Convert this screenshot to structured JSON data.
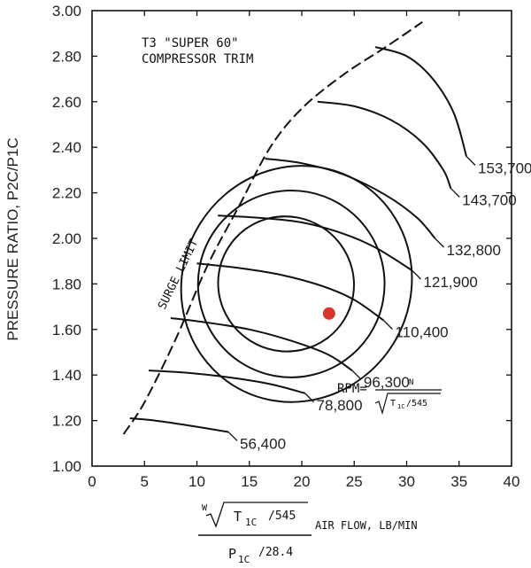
{
  "chart_data": {
    "type": "line",
    "title": "T3 \"SUPER 60\"",
    "subtitle": "COMPRESSOR TRIM",
    "xlabel": {
      "formula_w": "W",
      "formula_t": "T",
      "formula_t_sub": "1C",
      "formula_t_div": "/545",
      "suffix": "AIR FLOW, LB/MIN",
      "formula_p": "P",
      "formula_p_sub": "1C",
      "formula_p_div": "/28.4"
    },
    "ylabel": "PRESSURE RATIO, P2C/P1C",
    "xlim": [
      0,
      40
    ],
    "ylim": [
      1.0,
      3.0
    ],
    "x_ticks": [
      "0",
      "5",
      "10",
      "15",
      "20",
      "25",
      "30",
      "35",
      "40"
    ],
    "y_ticks": [
      "1.00",
      "1.20",
      "1.40",
      "1.60",
      "1.80",
      "2.00",
      "2.20",
      "2.40",
      "2.60",
      "2.80",
      "3.00"
    ],
    "surge_limit": {
      "label": "SURGE LIMIT",
      "points": [
        [
          3,
          1.14
        ],
        [
          5,
          1.28
        ],
        [
          8,
          1.56
        ],
        [
          11,
          1.88
        ],
        [
          14,
          2.14
        ],
        [
          17,
          2.4
        ],
        [
          20,
          2.57
        ],
        [
          24,
          2.72
        ],
        [
          28,
          2.84
        ],
        [
          31.5,
          2.95
        ]
      ]
    },
    "speed_lines": [
      {
        "name": "56,400",
        "points": [
          [
            3.6,
            1.21
          ],
          [
            6,
            1.2
          ],
          [
            9,
            1.18
          ],
          [
            13,
            1.15
          ]
        ]
      },
      {
        "name": "78,800",
        "points": [
          [
            5.4,
            1.42
          ],
          [
            9,
            1.41
          ],
          [
            13,
            1.39
          ],
          [
            17,
            1.36
          ],
          [
            20.3,
            1.32
          ]
        ]
      },
      {
        "name": "96,300",
        "points": [
          [
            7.5,
            1.65
          ],
          [
            11,
            1.63
          ],
          [
            15,
            1.6
          ],
          [
            19,
            1.55
          ],
          [
            22.5,
            1.49
          ],
          [
            24.8,
            1.42
          ]
        ]
      },
      {
        "name": "110,400",
        "points": [
          [
            10,
            1.89
          ],
          [
            14,
            1.87
          ],
          [
            18,
            1.84
          ],
          [
            22,
            1.79
          ],
          [
            25,
            1.73
          ],
          [
            27.8,
            1.64
          ]
        ]
      },
      {
        "name": "121,900",
        "points": [
          [
            12,
            2.1
          ],
          [
            16,
            2.09
          ],
          [
            20,
            2.07
          ],
          [
            24,
            2.02
          ],
          [
            27,
            1.96
          ],
          [
            30.5,
            1.86
          ]
        ]
      },
      {
        "name": "132,800",
        "points": [
          [
            16.5,
            2.35
          ],
          [
            20,
            2.33
          ],
          [
            24,
            2.28
          ],
          [
            28,
            2.19
          ],
          [
            31,
            2.09
          ],
          [
            32.7,
            2.0
          ]
        ]
      },
      {
        "name": "143,700",
        "points": [
          [
            21.5,
            2.6
          ],
          [
            25,
            2.58
          ],
          [
            28.5,
            2.52
          ],
          [
            31.5,
            2.42
          ],
          [
            33.5,
            2.3
          ],
          [
            34.2,
            2.22
          ]
        ]
      },
      {
        "name": "153,700",
        "points": [
          [
            27,
            2.84
          ],
          [
            30,
            2.8
          ],
          [
            32.5,
            2.7
          ],
          [
            34.5,
            2.55
          ],
          [
            35.7,
            2.36
          ]
        ]
      }
    ],
    "efficiency_islands": [
      {
        "cx": 19.5,
        "cy": 1.8,
        "rx": 11.4,
        "ry": 0.5,
        "angle": -58
      },
      {
        "cx": 19,
        "cy": 1.8,
        "rx": 8.9,
        "ry": 0.41,
        "angle": -58
      },
      {
        "cx": 18.5,
        "cy": 1.8,
        "rx": 6.4,
        "ry": 0.3,
        "angle": -58
      }
    ],
    "operating_point": {
      "x": 22.6,
      "y": 1.67,
      "color": "#d9342b"
    },
    "annotation": {
      "label": "RPM=",
      "numerator": "N",
      "denominator": "T",
      "denominator_sub": "1C",
      "denominator_div": "/545"
    },
    "grid": false
  }
}
